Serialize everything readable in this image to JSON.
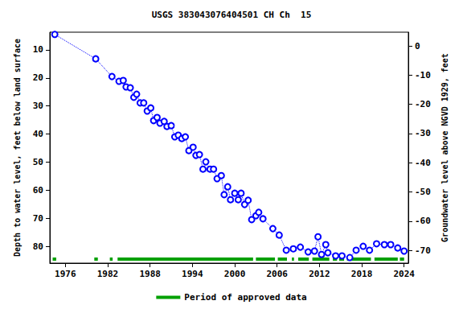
{
  "chart_data": {
    "type": "line",
    "title": "USGS 383043076404501 CH Ch  15",
    "y_label": "Depth to water level, feet below land surface",
    "y2_label": "Groundwater level above NGVD 1929, feet",
    "x": [
      1974.5,
      1980.3,
      1982.6,
      1983.6,
      1984.2,
      1984.6,
      1985.2,
      1985.7,
      1986.1,
      1986.6,
      1987.1,
      1987.6,
      1988.1,
      1988.5,
      1989.0,
      1989.4,
      1990.0,
      1990.4,
      1991.0,
      1991.5,
      1992.0,
      1992.5,
      1993.0,
      1993.5,
      1994.1,
      1994.5,
      1995.0,
      1995.5,
      1995.9,
      1996.5,
      1997.0,
      1997.5,
      1998.1,
      1998.5,
      1999.0,
      1999.4,
      2000.0,
      2000.5,
      2000.9,
      2001.4,
      2001.9,
      2002.4,
      2003.0,
      2003.4,
      2004.0,
      2005.4,
      2006.3,
      2007.3,
      2008.3,
      2009.3,
      2010.4,
      2011.3,
      2011.8,
      2012.3,
      2012.9,
      2013.2,
      2014.3,
      2015.2,
      2016.3,
      2017.2,
      2018.2,
      2019.1,
      2020.1,
      2021.2,
      2022.1,
      2023.1,
      2024.0
    ],
    "values": [
      4.5,
      13.2,
      19.5,
      21.2,
      20.9,
      23.2,
      23.5,
      26.9,
      25.8,
      28.9,
      28.9,
      31.8,
      30.7,
      35.2,
      34.1,
      36.1,
      35.5,
      37.3,
      37.0,
      41.0,
      40.4,
      41.6,
      41.0,
      45.9,
      44.7,
      47.6,
      47.3,
      52.5,
      49.9,
      52.5,
      52.5,
      55.9,
      54.8,
      61.6,
      58.8,
      63.4,
      61.1,
      63.4,
      61.1,
      65.1,
      63.6,
      70.5,
      69.1,
      67.9,
      70.2,
      73.7,
      76.0,
      81.4,
      80.9,
      80.3,
      82.0,
      81.7,
      76.6,
      82.9,
      79.4,
      82.3,
      83.4,
      83.4,
      84.0,
      81.4,
      80.0,
      81.4,
      79.1,
      79.4,
      79.4,
      80.6,
      81.7
    ],
    "color": "#0000ff",
    "marker": "circle",
    "line_style": "dotted",
    "xlim": [
      1973.8,
      2024.6
    ],
    "xticks": [
      1976,
      1982,
      1988,
      1994,
      2000,
      2006,
      2012,
      2018,
      2024
    ],
    "ylim": [
      3.7,
      86
    ],
    "yticks": [
      10,
      20,
      30,
      40,
      50,
      60,
      70,
      80
    ],
    "y2lim": [
      -74.4,
      4.7
    ],
    "y2ticks": [
      -70,
      -60,
      -50,
      -40,
      -30,
      -20,
      -10,
      0
    ],
    "grid": false,
    "legend": "bottom",
    "approved_periods": {
      "name": "Period of approved data",
      "color": "#00a000",
      "ranges": [
        [
          1974.2,
          1974.7
        ],
        [
          1980.1,
          1980.6
        ],
        [
          1982.3,
          1982.7
        ],
        [
          1983.4,
          2002.6
        ],
        [
          2003.0,
          2005.7
        ],
        [
          2006.1,
          2007.4
        ],
        [
          2008.1,
          2008.4
        ],
        [
          2009.0,
          2010.5
        ],
        [
          2011.0,
          2013.4
        ],
        [
          2013.9,
          2014.5
        ],
        [
          2014.8,
          2015.5
        ],
        [
          2015.9,
          2019.3
        ],
        [
          2019.8,
          2023.1
        ],
        [
          2023.4,
          2024.0
        ]
      ]
    }
  }
}
